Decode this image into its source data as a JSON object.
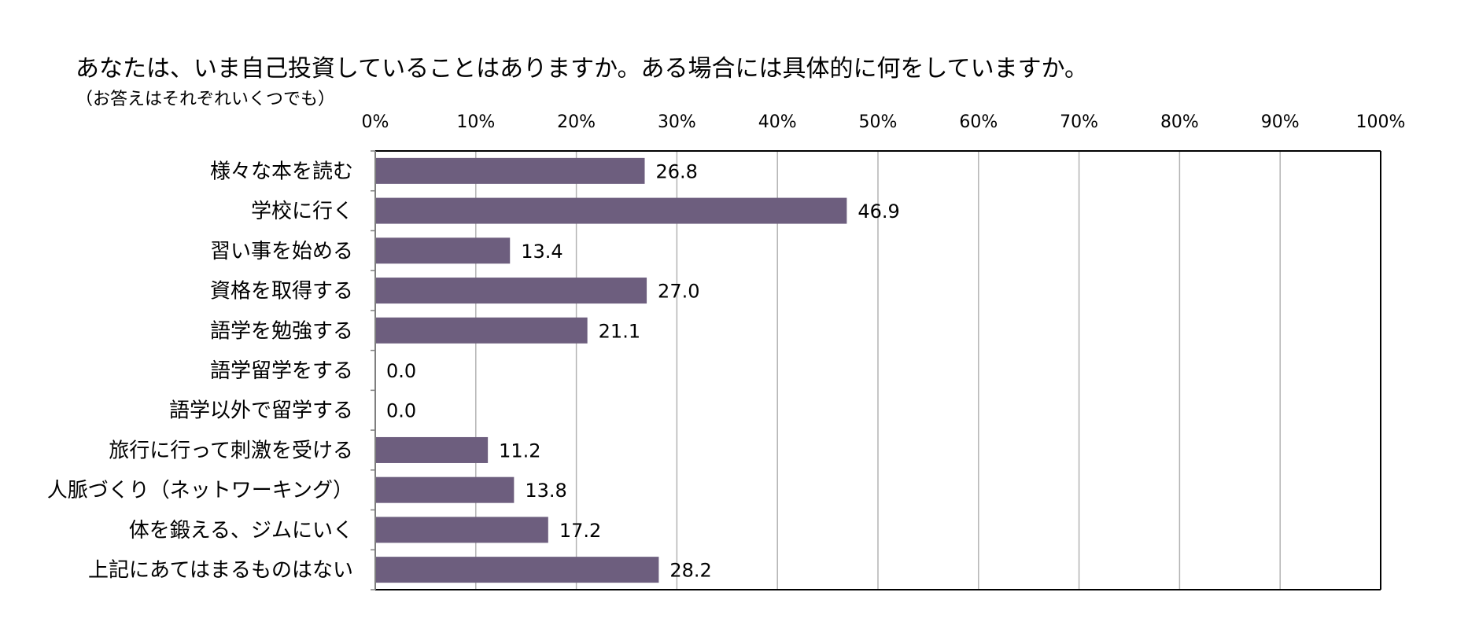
{
  "title": "あなたは、いま自己投資していることはありますか。ある場合には具体的に何をしていますか。",
  "subtitle": "（お答えはそれぞれいくつでも）",
  "colors": {
    "bar": "#6d5e7e",
    "grid": "#b3b3b3",
    "axis": "#000000"
  },
  "chart_data": {
    "type": "bar",
    "orientation": "horizontal",
    "xlim": [
      0,
      100
    ],
    "xticks": [
      "0%",
      "10%",
      "20%",
      "30%",
      "40%",
      "50%",
      "60%",
      "70%",
      "80%",
      "90%",
      "100%"
    ],
    "grid": true,
    "categories": [
      "様々な本を読む",
      "学校に行く",
      "習い事を始める",
      "資格を取得する",
      "語学を勉強する",
      "語学留学をする",
      "語学以外で留学する",
      "旅行に行って刺激を受ける",
      "人脈づくり（ネットワーキング）",
      "体を鍛える、ジムにいく",
      "上記にあてはまるものはない"
    ],
    "values": [
      26.8,
      46.9,
      13.4,
      27.0,
      21.1,
      0.0,
      0.0,
      11.2,
      13.8,
      17.2,
      28.2
    ],
    "data_labels": [
      "26.8",
      "46.9",
      "13.4",
      "27.0",
      "21.1",
      "0.0",
      "0.0",
      "11.2",
      "13.8",
      "17.2",
      "28.2"
    ]
  }
}
